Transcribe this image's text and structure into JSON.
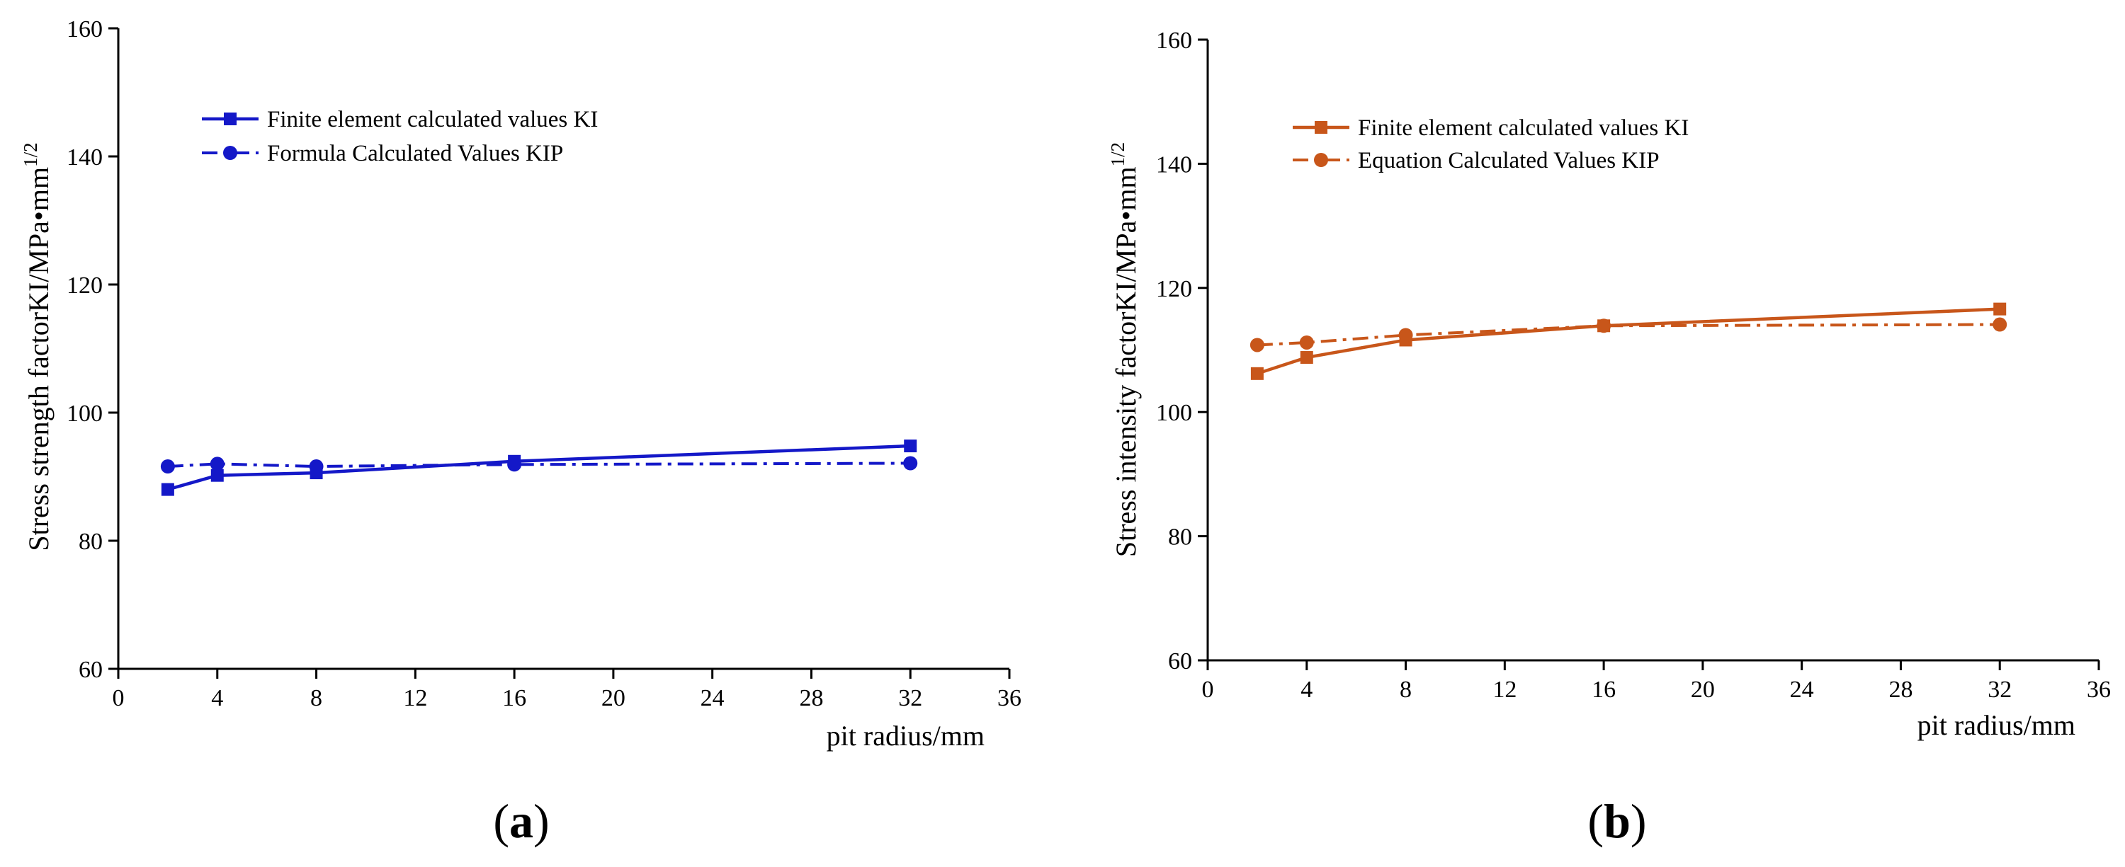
{
  "chart_data": [
    {
      "type": "line",
      "panel_label": "a",
      "xlabel": "pit radius/mm",
      "ylabel": "Stress strength factorKI/MPa•mm",
      "ylabel_sup": "1/2",
      "xlim": [
        0,
        36
      ],
      "ylim": [
        60,
        160
      ],
      "xticks": [
        0,
        4,
        8,
        12,
        16,
        20,
        24,
        28,
        32,
        36
      ],
      "yticks": [
        60,
        80,
        100,
        120,
        140,
        160
      ],
      "grid": false,
      "legend_position": "top-left",
      "color": "#1418c8",
      "series": [
        {
          "name": "Finite element calculated values KI",
          "marker": "square",
          "line_style": "solid",
          "x": [
            2,
            4,
            8,
            16,
            32
          ],
          "y": [
            88.0,
            90.2,
            90.6,
            92.4,
            94.8
          ]
        },
        {
          "name": "Formula Calculated Values KIP",
          "marker": "circle",
          "line_style": "dash-dot",
          "x": [
            2,
            4,
            8,
            16,
            32
          ],
          "y": [
            91.6,
            92.0,
            91.6,
            91.9,
            92.1
          ]
        }
      ]
    },
    {
      "type": "line",
      "panel_label": "b",
      "xlabel": "pit radius/mm",
      "ylabel": "Stress intensity factorKI/MPa•mm",
      "ylabel_sup": "1/2",
      "xlim": [
        0,
        36
      ],
      "ylim": [
        60,
        160
      ],
      "xticks": [
        0,
        4,
        8,
        12,
        16,
        20,
        24,
        28,
        32,
        36
      ],
      "yticks": [
        60,
        80,
        100,
        120,
        140,
        160
      ],
      "grid": false,
      "legend_position": "top-left",
      "color": "#c8561a",
      "series": [
        {
          "name": "Finite element calculated values KI",
          "marker": "square",
          "line_style": "solid",
          "x": [
            2,
            4,
            8,
            16,
            32
          ],
          "y": [
            106.2,
            108.8,
            111.6,
            113.9,
            116.6
          ]
        },
        {
          "name": "Equation Calculated Values KIP",
          "marker": "circle",
          "line_style": "dash-dot",
          "x": [
            2,
            4,
            8,
            16,
            32
          ],
          "y": [
            110.8,
            111.2,
            112.4,
            113.9,
            114.1
          ]
        }
      ]
    }
  ]
}
